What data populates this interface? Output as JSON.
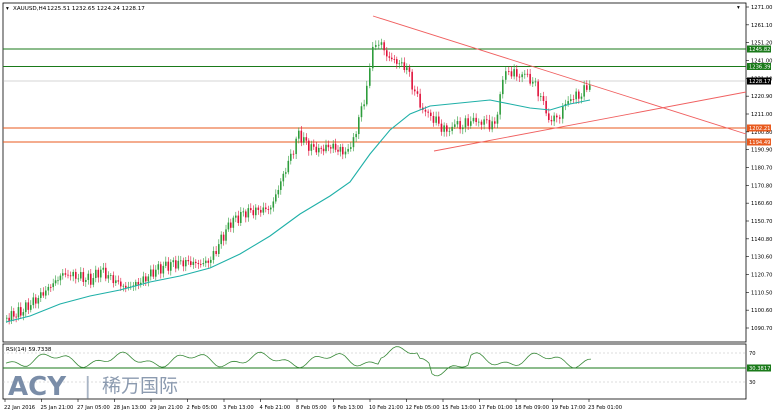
{
  "header": {
    "symbol": "XAUUSD,H4",
    "ohlc": "1225.51 1232.65 1224.24 1228.17",
    "menu_icon": "triangle-down-icon"
  },
  "price_axis": {
    "ticks": [
      "1271.00",
      "1261.10",
      "1251.20",
      "1241.00",
      "1231.10",
      "1220.90",
      "1211.00",
      "1200.80",
      "1190.90",
      "1180.70",
      "1170.80",
      "1160.60",
      "1150.70",
      "1140.80",
      "1130.60",
      "1120.70",
      "1110.50",
      "1100.60",
      "1090.70"
    ],
    "labels": {
      "resistance_1": "1245.82",
      "resistance_2": "1236.39",
      "current": "1228.17",
      "support_1": "1202.21",
      "support_2": "1194.49"
    }
  },
  "rsi": {
    "title": "RSI(14) 59.7338",
    "ticks": [
      "70",
      "30"
    ],
    "level_label": "30.3817"
  },
  "time_axis": [
    "22 Jan 2016",
    "25 Jan 21:00",
    "27 Jan 05:00",
    "28 Jan 13:00",
    "29 Jan 21:00",
    "2 Feb 05:00",
    "3 Feb 13:00",
    "4 Feb 21:00",
    "8 Feb 05:00",
    "9 Feb 13:00",
    "10 Feb 21:00",
    "12 Feb 05:00",
    "15 Feb 13:00",
    "17 Feb 01:00",
    "18 Feb 09:00",
    "19 Feb 17:00",
    "23 Feb 01:00"
  ],
  "watermark": {
    "brand": "ACY",
    "separator": "|",
    "cn": "稀万国际"
  },
  "colors": {
    "bull": "#2e9d3c",
    "bear": "#e0103a",
    "ma": "#1fb0a8",
    "green_line": "#1a7a1a",
    "orange_line": "#e85a1e",
    "trend_line": "#f06060",
    "rsi_line": "#3a8a3a"
  }
}
